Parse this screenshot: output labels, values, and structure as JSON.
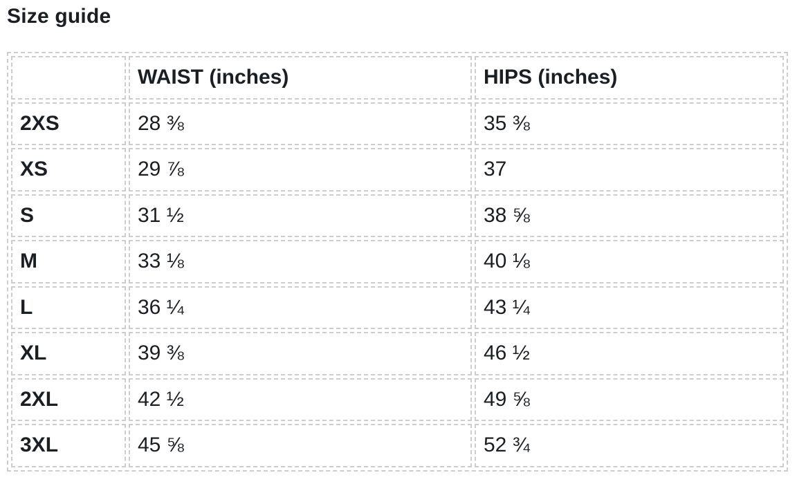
{
  "page": {
    "title": "Size guide"
  },
  "colors": {
    "text": "#1b1e23",
    "border": "#cdcdcd",
    "background": "#ffffff"
  },
  "table": {
    "columns": [
      "",
      "WAIST (inches)",
      "HIPS (inches)"
    ],
    "rows": [
      {
        "size": "2XS",
        "waist": "28 ⅜",
        "hips": "35 ⅜"
      },
      {
        "size": "XS",
        "waist": "29 ⅞",
        "hips": "37"
      },
      {
        "size": "S",
        "waist": "31 ½",
        "hips": "38 ⅝"
      },
      {
        "size": "M",
        "waist": "33 ⅛",
        "hips": "40 ⅛"
      },
      {
        "size": "L",
        "waist": "36 ¼",
        "hips": "43 ¼"
      },
      {
        "size": "XL",
        "waist": "39 ⅜",
        "hips": "46 ½"
      },
      {
        "size": "2XL",
        "waist": "42 ½",
        "hips": "49 ⅝"
      },
      {
        "size": "3XL",
        "waist": "45 ⅝",
        "hips": "52 ¾"
      }
    ]
  }
}
